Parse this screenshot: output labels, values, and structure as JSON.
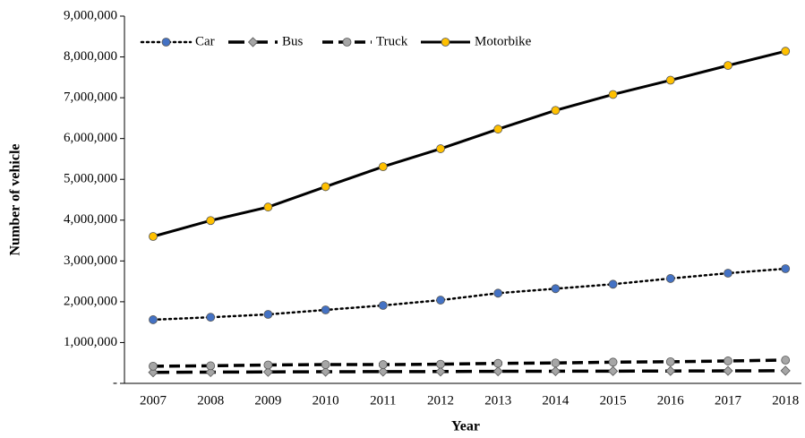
{
  "chart_data": {
    "type": "line",
    "xlabel": "Year",
    "ylabel": "Number of vehicle",
    "categories": [
      "2007",
      "2008",
      "2009",
      "2010",
      "2011",
      "2012",
      "2013",
      "2014",
      "2015",
      "2016",
      "2017",
      "2018"
    ],
    "series": [
      {
        "name": "Car",
        "color": "#000000",
        "marker_color": "#4472c4",
        "marker": "circle",
        "dash": "dotted",
        "values": [
          1560000,
          1620000,
          1690000,
          1800000,
          1910000,
          2040000,
          2210000,
          2320000,
          2430000,
          2570000,
          2700000,
          2810000
        ]
      },
      {
        "name": "Bus",
        "color": "#000000",
        "marker_color": "#a6a6a6",
        "marker": "diamond",
        "dash": "long-dash",
        "values": [
          270000,
          275000,
          280000,
          285000,
          288000,
          290000,
          295000,
          298000,
          300000,
          303000,
          306000,
          310000
        ]
      },
      {
        "name": "Truck",
        "color": "#000000",
        "marker_color": "#a6a6a6",
        "marker": "circle",
        "dash": "dash",
        "values": [
          420000,
          430000,
          450000,
          460000,
          460000,
          470000,
          490000,
          500000,
          520000,
          530000,
          550000,
          570000
        ]
      },
      {
        "name": "Motorbike",
        "color": "#000000",
        "marker_color": "#ffc000",
        "marker": "circle",
        "dash": "solid",
        "values": [
          3600000,
          3990000,
          4320000,
          4820000,
          5310000,
          5750000,
          6230000,
          6690000,
          7080000,
          7430000,
          7790000,
          8140000
        ]
      }
    ],
    "ylim": [
      0,
      9000000
    ],
    "yticks": [
      {
        "value": 0,
        "label": "-"
      },
      {
        "value": 1000000,
        "label": "1,000,000"
      },
      {
        "value": 2000000,
        "label": "2,000,000"
      },
      {
        "value": 3000000,
        "label": "3,000,000"
      },
      {
        "value": 4000000,
        "label": "4,000,000"
      },
      {
        "value": 5000000,
        "label": "5,000,000"
      },
      {
        "value": 6000000,
        "label": "6,000,000"
      },
      {
        "value": 7000000,
        "label": "7,000,000"
      },
      {
        "value": 8000000,
        "label": "8,000,000"
      },
      {
        "value": 9000000,
        "label": "9,000,000"
      }
    ],
    "grid": false,
    "legend": "top-left"
  }
}
